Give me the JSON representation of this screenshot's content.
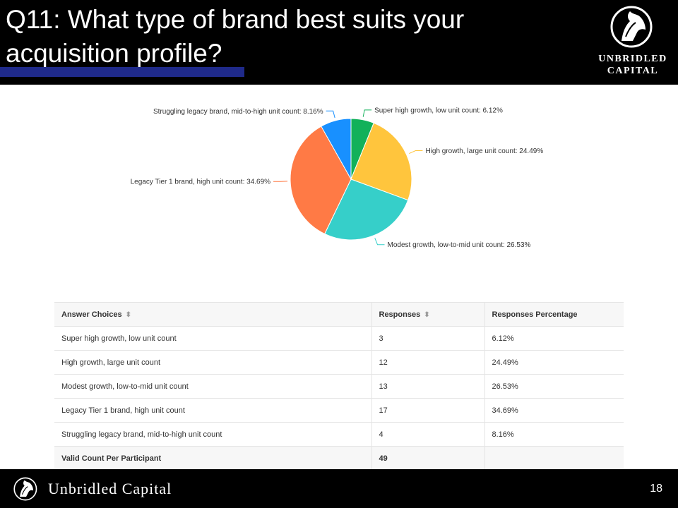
{
  "header": {
    "title_line1": "Q11: What type of brand best suits your",
    "title_line2": "acquisition profile?",
    "logo_line1": "UNBRIDLED",
    "logo_line2": "CAPITAL"
  },
  "colors": {
    "header_bg": "#000000",
    "title_underline": "#1f2a8a",
    "slice_colors": [
      "#12b15a",
      "#ffc53d",
      "#36cfc9",
      "#ff7a45",
      "#1890ff"
    ]
  },
  "chart_data": {
    "type": "pie",
    "categories": [
      "Super high growth, low unit count",
      "High growth, large unit count",
      "Modest growth, low-to-mid unit count",
      "Legacy Tier 1 brand, high unit count",
      "Struggling legacy brand, mid-to-high unit count"
    ],
    "values": [
      6.12,
      24.49,
      26.53,
      34.69,
      8.16
    ],
    "labels": [
      "Super high growth, low unit count: 6.12%",
      "High growth, large unit count: 24.49%",
      "Modest growth, low-to-mid unit count: 26.53%",
      "Legacy Tier 1 brand, high unit count: 34.69%",
      "Struggling legacy brand, mid-to-high unit count: 8.16%"
    ]
  },
  "table": {
    "headers": [
      "Answer Choices",
      "Responses",
      "Responses Percentage"
    ],
    "rows": [
      [
        "Super high growth, low unit count",
        "3",
        "6.12%"
      ],
      [
        "High growth, large unit count",
        "12",
        "24.49%"
      ],
      [
        "Modest growth, low-to-mid unit count",
        "13",
        "26.53%"
      ],
      [
        "Legacy Tier 1 brand, high unit count",
        "17",
        "34.69%"
      ],
      [
        "Struggling legacy brand, mid-to-high unit count",
        "4",
        "8.16%"
      ]
    ],
    "total_label": "Valid Count Per Participant",
    "total_value": "49"
  },
  "footer": {
    "company": "Unbridled Capital",
    "page_number": "18"
  }
}
